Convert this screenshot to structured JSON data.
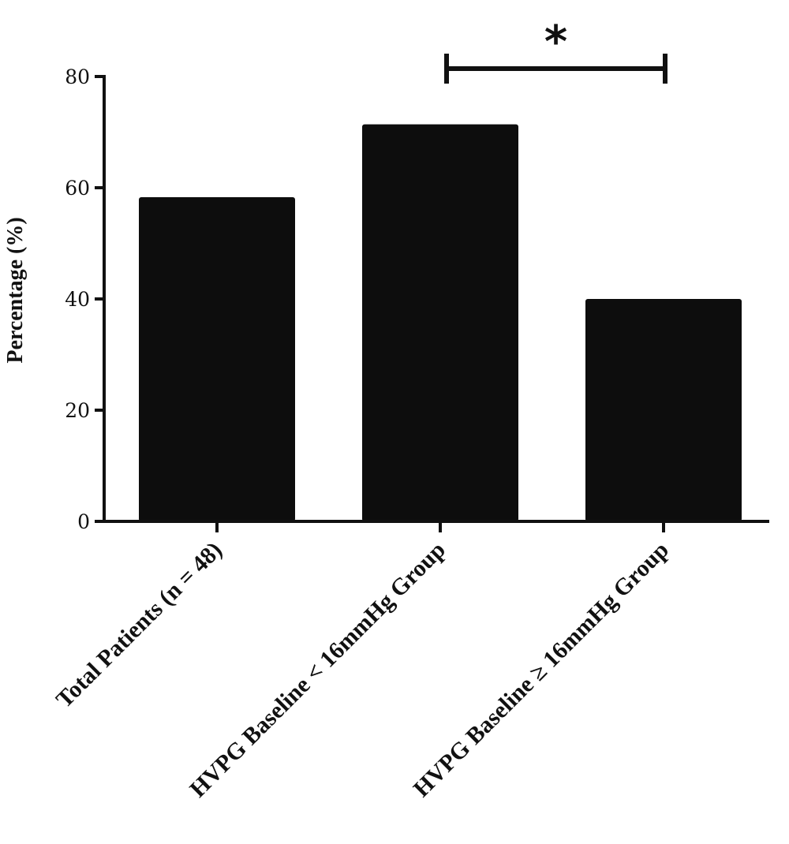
{
  "chart_data": {
    "type": "bar",
    "title": "",
    "xlabel": "",
    "ylabel": "Percentage (%)",
    "categories": [
      "Total Patients (n = 48)",
      "HVPG Baseline < 16mmHg Group",
      "HVPG Baseline ≥ 16mmHg Group"
    ],
    "values": [
      58.3,
      71.4,
      40.0
    ],
    "ylim": [
      0,
      80
    ],
    "yticks": [
      0,
      20,
      40,
      60,
      80
    ],
    "bar_color": "#0d0d0d",
    "grid": false,
    "annotations": [
      {
        "type": "significance",
        "from_category": 1,
        "to_category": 2,
        "label": "*"
      }
    ]
  }
}
